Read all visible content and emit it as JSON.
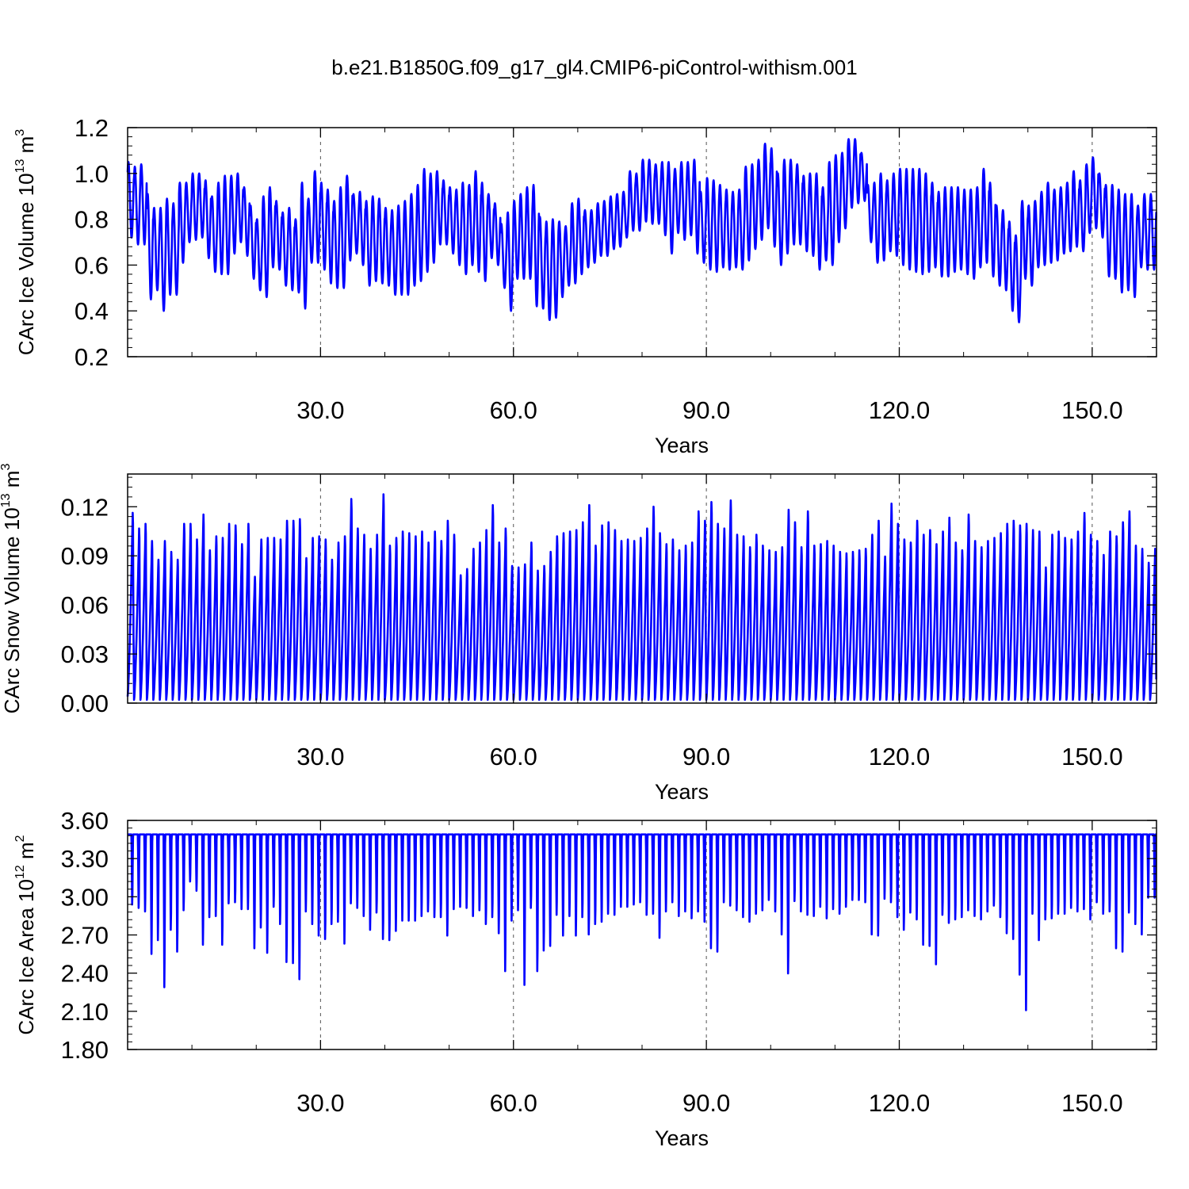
{
  "title": "b.e21.B1850G.f09_g17_gl4.CMIP6-piControl-withism.001",
  "chart_data": [
    {
      "type": "line",
      "ylabel": "CArc Ice Volume 10",
      "ylabel_exp": "13",
      "ylabel_unit": " m",
      "ylabel_unit_exp": "3",
      "xlabel": "Years",
      "xlim": [
        0,
        160
      ],
      "ylim": [
        0.2,
        1.2
      ],
      "xticks": [
        30,
        60,
        90,
        120,
        150
      ],
      "xtick_labels": [
        "30.0",
        "60.0",
        "90.0",
        "120.0",
        "150.0"
      ],
      "yticks": [
        0.2,
        0.4,
        0.6,
        0.8,
        1.0,
        1.2
      ],
      "ytick_labels": [
        "0.2",
        "0.4",
        "0.6",
        "0.8",
        "1.0",
        "1.2"
      ],
      "grid": "vertical-dashed",
      "color": "#0000ff",
      "annual_max": [
        1.05,
        1.03,
        1.04,
        0.91,
        0.85,
        0.85,
        0.89,
        0.87,
        0.96,
        0.96,
        1.0,
        1.0,
        0.97,
        0.9,
        0.96,
        0.99,
        0.99,
        1.0,
        0.94,
        0.86,
        0.8,
        0.9,
        0.94,
        0.88,
        0.83,
        0.85,
        0.8,
        0.96,
        0.89,
        1.01,
        0.96,
        0.93,
        0.88,
        0.94,
        0.99,
        0.91,
        0.92,
        0.88,
        0.9,
        0.89,
        0.85,
        0.84,
        0.86,
        0.88,
        0.91,
        0.95,
        1.02,
        1.0,
        1.01,
        0.97,
        0.94,
        0.93,
        0.96,
        0.95,
        1.01,
        0.96,
        0.91,
        0.87,
        0.78,
        0.83,
        0.88,
        0.91,
        0.94,
        0.95,
        0.81,
        0.79,
        0.8,
        0.79,
        0.77,
        0.87,
        0.89,
        0.84,
        0.84,
        0.87,
        0.88,
        0.9,
        0.91,
        0.92,
        1.01,
        1.0,
        1.06,
        1.06,
        1.04,
        1.05,
        1.05,
        1.02,
        1.05,
        1.05,
        1.06,
        0.92,
        0.98,
        0.97,
        0.95,
        0.93,
        0.92,
        0.93,
        1.03,
        1.04,
        1.06,
        1.13,
        1.11,
        1.0,
        1.06,
        1.06,
        1.04,
        0.99,
        1.0,
        1.0,
        0.94,
        1.05,
        1.08,
        1.09,
        1.15,
        1.15,
        1.09,
        0.95,
        0.96,
        1.0,
        0.97,
        1.0,
        1.02,
        1.02,
        1.02,
        1.02,
        1.0,
        0.96,
        0.92,
        0.94,
        0.94,
        0.94,
        0.93,
        0.93,
        0.94,
        1.02,
        0.96,
        0.86,
        0.84,
        0.79,
        0.73,
        0.88,
        0.86,
        0.88,
        0.92,
        0.96,
        0.93,
        0.94,
        0.96,
        1.01,
        0.97,
        1.04,
        1.07,
        1.0,
        0.95,
        0.95,
        0.93,
        0.91,
        0.91,
        0.86,
        0.91
      ],
      "annual_min": [
        0.72,
        0.69,
        0.69,
        0.45,
        0.49,
        0.4,
        0.47,
        0.47,
        0.61,
        0.7,
        0.71,
        0.72,
        0.63,
        0.57,
        0.56,
        0.56,
        0.65,
        0.7,
        0.64,
        0.54,
        0.49,
        0.46,
        0.59,
        0.58,
        0.51,
        0.49,
        0.48,
        0.41,
        0.61,
        0.61,
        0.58,
        0.52,
        0.5,
        0.5,
        0.62,
        0.65,
        0.6,
        0.51,
        0.53,
        0.52,
        0.51,
        0.47,
        0.47,
        0.47,
        0.51,
        0.53,
        0.57,
        0.61,
        0.69,
        0.69,
        0.65,
        0.6,
        0.56,
        0.6,
        0.57,
        0.53,
        0.63,
        0.6,
        0.5,
        0.4,
        0.54,
        0.54,
        0.54,
        0.42,
        0.41,
        0.36,
        0.37,
        0.46,
        0.51,
        0.52,
        0.56,
        0.59,
        0.61,
        0.64,
        0.64,
        0.67,
        0.68,
        0.72,
        0.75,
        0.75,
        0.79,
        0.78,
        0.78,
        0.73,
        0.65,
        0.74,
        0.71,
        0.73,
        0.65,
        0.61,
        0.58,
        0.57,
        0.59,
        0.58,
        0.59,
        0.58,
        0.62,
        0.67,
        0.71,
        0.76,
        0.68,
        0.6,
        0.65,
        0.69,
        0.69,
        0.66,
        0.64,
        0.58,
        0.62,
        0.6,
        0.7,
        0.76,
        0.85,
        0.87,
        0.88,
        0.7,
        0.61,
        0.62,
        0.66,
        0.64,
        0.6,
        0.58,
        0.57,
        0.56,
        0.57,
        0.59,
        0.55,
        0.55,
        0.57,
        0.58,
        0.56,
        0.54,
        0.59,
        0.61,
        0.55,
        0.51,
        0.49,
        0.4,
        0.35,
        0.54,
        0.51,
        0.59,
        0.6,
        0.61,
        0.62,
        0.65,
        0.66,
        0.68,
        0.66,
        0.74,
        0.76,
        0.72,
        0.55,
        0.54,
        0.48,
        0.49,
        0.46,
        0.59,
        0.58
      ]
    },
    {
      "type": "line",
      "ylabel": "CArc Snow Volume 10",
      "ylabel_exp": "13",
      "ylabel_unit": " m",
      "ylabel_unit_exp": "3",
      "xlabel": "Years",
      "xlim": [
        0,
        160
      ],
      "ylim": [
        0.0,
        0.14
      ],
      "xticks": [
        30,
        60,
        90,
        120,
        150
      ],
      "xtick_labels": [
        "30.0",
        "60.0",
        "90.0",
        "120.0",
        "150.0"
      ],
      "yticks": [
        0.0,
        0.03,
        0.06,
        0.09,
        0.12
      ],
      "ytick_labels": [
        "0.00",
        "0.03",
        "0.06",
        "0.09",
        "0.12"
      ],
      "grid": "vertical-dashed",
      "color": "#0000ff",
      "annual_max": [
        0.122,
        0.112,
        0.115,
        0.104,
        0.092,
        0.104,
        0.097,
        0.092,
        0.115,
        0.115,
        0.105,
        0.121,
        0.098,
        0.107,
        0.106,
        0.115,
        0.114,
        0.102,
        0.115,
        0.081,
        0.105,
        0.106,
        0.106,
        0.105,
        0.117,
        0.117,
        0.118,
        0.093,
        0.106,
        0.107,
        0.105,
        0.092,
        0.103,
        0.107,
        0.131,
        0.112,
        0.108,
        0.099,
        0.108,
        0.134,
        0.101,
        0.106,
        0.11,
        0.109,
        0.107,
        0.11,
        0.103,
        0.11,
        0.104,
        0.117,
        0.108,
        0.082,
        0.086,
        0.099,
        0.103,
        0.111,
        0.127,
        0.103,
        0.112,
        0.088,
        0.087,
        0.089,
        0.103,
        0.085,
        0.088,
        0.097,
        0.107,
        0.109,
        0.11,
        0.111,
        0.116,
        0.127,
        0.101,
        0.114,
        0.116,
        0.111,
        0.104,
        0.105,
        0.104,
        0.106,
        0.112,
        0.126,
        0.109,
        0.102,
        0.105,
        0.098,
        0.101,
        0.103,
        0.123,
        0.117,
        0.129,
        0.115,
        0.112,
        0.13,
        0.108,
        0.107,
        0.1,
        0.108,
        0.101,
        0.098,
        0.097,
        0.1,
        0.124,
        0.116,
        0.1,
        0.123,
        0.101,
        0.102,
        0.104,
        0.101,
        0.097,
        0.096,
        0.097,
        0.098,
        0.099,
        0.108,
        0.117,
        0.094,
        0.128,
        0.115,
        0.105,
        0.103,
        0.117,
        0.108,
        0.111,
        0.102,
        0.11,
        0.119,
        0.103,
        0.098,
        0.121,
        0.104,
        0.1,
        0.104,
        0.106,
        0.109,
        0.115,
        0.117,
        0.114,
        0.115,
        0.111,
        0.11,
        0.087,
        0.108,
        0.11,
        0.106,
        0.105,
        0.11,
        0.122,
        0.108,
        0.104,
        0.095,
        0.11,
        0.107,
        0.116,
        0.123,
        0.101,
        0.099,
        0.09,
        0.099,
        0.134,
        0.107
      ],
      "annual_min": [
        0.004,
        0.002,
        0.002,
        0.002,
        0.002,
        0.002,
        0.002,
        0.002,
        0.002,
        0.002,
        0.002,
        0.002,
        0.002,
        0.002,
        0.002,
        0.002,
        0.002,
        0.002,
        0.002,
        0.002,
        0.002,
        0.002,
        0.002,
        0.002,
        0.002,
        0.002,
        0.002,
        0.002,
        0.002,
        0.002,
        0.002,
        0.002,
        0.002,
        0.002,
        0.002,
        0.002,
        0.002,
        0.002,
        0.002,
        0.002,
        0.002,
        0.002,
        0.002,
        0.002,
        0.002,
        0.002,
        0.002,
        0.002,
        0.002,
        0.002,
        0.002,
        0.002,
        0.002,
        0.002,
        0.002,
        0.002,
        0.002,
        0.002,
        0.002,
        0.002,
        0.002,
        0.002,
        0.002,
        0.002,
        0.002,
        0.002,
        0.002,
        0.002,
        0.002,
        0.002,
        0.002,
        0.002,
        0.002,
        0.002,
        0.002,
        0.002,
        0.002,
        0.002,
        0.002,
        0.002,
        0.002,
        0.002,
        0.002,
        0.002,
        0.002,
        0.002,
        0.002,
        0.002,
        0.002,
        0.002,
        0.002,
        0.002,
        0.002,
        0.002,
        0.002,
        0.002,
        0.002,
        0.002,
        0.002,
        0.002,
        0.002,
        0.002,
        0.002,
        0.002,
        0.002,
        0.002,
        0.002,
        0.002,
        0.002,
        0.002,
        0.002,
        0.002,
        0.002,
        0.002,
        0.002,
        0.002,
        0.002,
        0.002,
        0.002,
        0.002,
        0.002,
        0.002,
        0.002,
        0.002,
        0.002,
        0.002,
        0.002,
        0.002,
        0.002,
        0.002,
        0.002,
        0.002,
        0.002,
        0.002,
        0.002,
        0.002,
        0.002,
        0.002,
        0.002,
        0.002,
        0.002,
        0.002,
        0.002,
        0.002,
        0.002,
        0.002,
        0.002,
        0.002,
        0.002,
        0.002,
        0.002,
        0.002,
        0.002,
        0.002,
        0.002,
        0.002,
        0.002,
        0.002,
        0.002,
        0.002,
        0.002,
        0.05
      ]
    },
    {
      "type": "line",
      "ylabel": "CArc Ice Area 10",
      "ylabel_exp": "12",
      "ylabel_unit": " m",
      "ylabel_unit_exp": "2",
      "xlabel": "Years",
      "xlim": [
        0,
        160
      ],
      "ylim": [
        1.8,
        3.6
      ],
      "xticks": [
        30,
        60,
        90,
        120,
        150
      ],
      "xtick_labels": [
        "30.0",
        "60.0",
        "90.0",
        "120.0",
        "150.0"
      ],
      "yticks": [
        1.8,
        2.1,
        2.4,
        2.7,
        3.0,
        3.3,
        3.6
      ],
      "ytick_labels": [
        "1.80",
        "2.10",
        "2.40",
        "2.70",
        "3.00",
        "3.30",
        "3.60"
      ],
      "grid": "vertical-dashed",
      "color": "#0000ff",
      "annual_max": 3.49,
      "annual_min": [
        2.88,
        2.85,
        2.82,
        2.45,
        2.57,
        2.16,
        2.66,
        2.47,
        2.83,
        3.08,
        3.0,
        2.53,
        2.77,
        2.78,
        2.53,
        2.89,
        2.9,
        2.84,
        2.84,
        2.5,
        2.68,
        2.46,
        2.86,
        2.71,
        2.38,
        2.37,
        2.23,
        2.82,
        2.71,
        2.61,
        2.58,
        2.71,
        2.73,
        2.54,
        2.89,
        2.85,
        2.78,
        2.66,
        2.81,
        2.58,
        2.57,
        2.65,
        2.74,
        2.74,
        2.74,
        2.78,
        2.82,
        2.77,
        2.77,
        2.61,
        2.84,
        2.86,
        2.85,
        2.78,
        2.83,
        2.71,
        2.77,
        2.63,
        2.3,
        2.74,
        2.83,
        2.18,
        2.85,
        2.3,
        2.48,
        2.52,
        2.79,
        2.61,
        2.78,
        2.61,
        2.77,
        2.62,
        2.71,
        2.73,
        2.8,
        2.79,
        2.86,
        2.86,
        2.88,
        2.9,
        2.79,
        2.8,
        2.59,
        2.82,
        2.9,
        2.78,
        2.82,
        2.76,
        2.82,
        2.73,
        2.5,
        2.47,
        2.9,
        2.87,
        2.83,
        2.77,
        2.73,
        2.8,
        2.83,
        2.92,
        2.82,
        2.62,
        2.28,
        2.91,
        2.82,
        2.79,
        2.78,
        2.86,
        2.76,
        2.84,
        2.8,
        2.86,
        2.92,
        2.92,
        2.9,
        2.62,
        2.61,
        2.93,
        2.9,
        2.77,
        2.66,
        2.81,
        2.75,
        2.53,
        2.52,
        2.36,
        2.79,
        2.72,
        2.75,
        2.77,
        2.83,
        2.78,
        2.75,
        2.82,
        2.87,
        2.77,
        2.63,
        2.58,
        2.27,
        1.96,
        2.8,
        2.57,
        2.75,
        2.76,
        2.8,
        2.8,
        2.85,
        2.82,
        2.84,
        2.75,
        2.9,
        2.8,
        2.82,
        2.5,
        2.47,
        2.81,
        2.71,
        2.62,
        2.94
      ]
    }
  ]
}
